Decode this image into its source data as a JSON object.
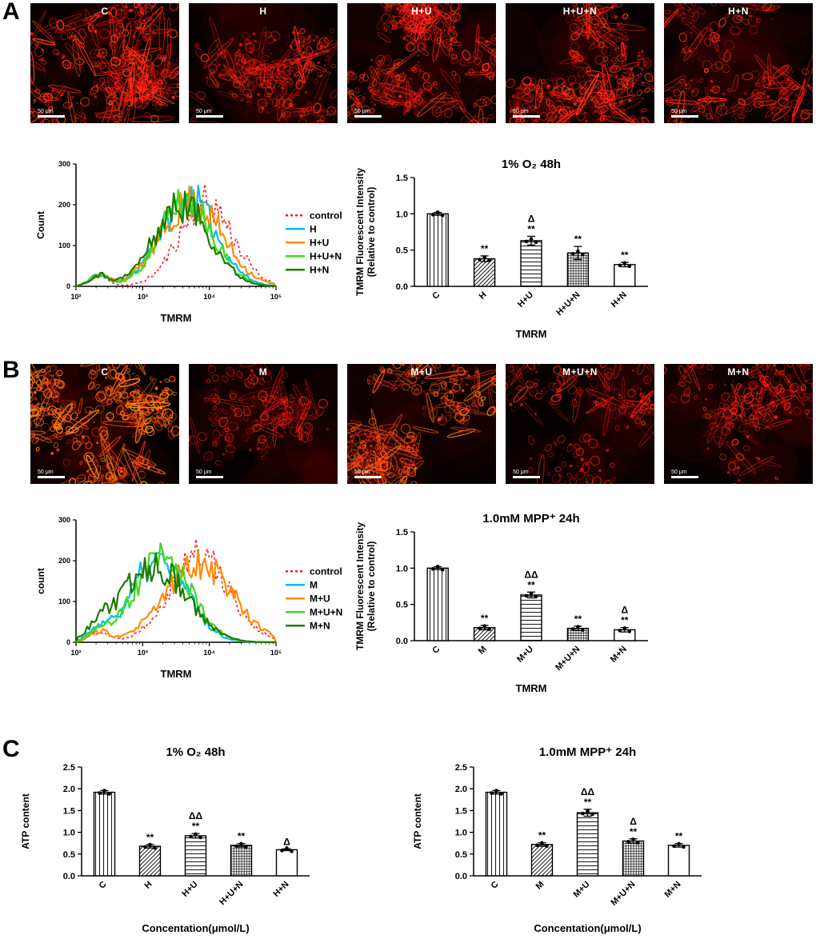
{
  "panels": {
    "A": {
      "label": "A",
      "micrographs": [
        {
          "label": "C",
          "scalebar": "50 μm"
        },
        {
          "label": "H",
          "scalebar": "50 μm"
        },
        {
          "label": "H+U",
          "scalebar": "50 μm"
        },
        {
          "label": "H+U+N",
          "scalebar": "50 μm"
        },
        {
          "label": "H+N",
          "scalebar": "50 μm"
        }
      ]
    },
    "B": {
      "label": "B",
      "micrographs": [
        {
          "label": "C",
          "scalebar": "50 μm"
        },
        {
          "label": "M",
          "scalebar": "50 μm"
        },
        {
          "label": "M+U",
          "scalebar": "50 μm"
        },
        {
          "label": "M+U+N",
          "scalebar": "50 μm"
        },
        {
          "label": "M+N",
          "scalebar": "50 μm"
        }
      ]
    },
    "C": {
      "label": "C"
    }
  },
  "chart_data": [
    {
      "id": "flow-a",
      "type": "line",
      "title": "",
      "xlabel": "TMRM",
      "ylabel": "Count",
      "x_scale": "log",
      "x_tick_labels": [
        "10²",
        "10³",
        "10⁴",
        "10⁵"
      ],
      "y_ticks": [
        0,
        100,
        200,
        300
      ],
      "ylim": [
        0,
        300
      ],
      "legend_position": "right",
      "series": [
        {
          "name": "control",
          "color": "#ff1a1a",
          "dashed": true,
          "peak_log": 3.95,
          "peak_count": 205,
          "sigma": 0.4
        },
        {
          "name": "H",
          "color": "#00bfe8",
          "dashed": false,
          "peak_log": 3.68,
          "peak_count": 215,
          "sigma": 0.42
        },
        {
          "name": "H+U",
          "color": "#ff8c00",
          "dashed": false,
          "peak_log": 3.74,
          "peak_count": 205,
          "sigma": 0.46
        },
        {
          "name": "H+U+N",
          "color": "#3ddb1f",
          "dashed": false,
          "peak_log": 3.66,
          "peak_count": 210,
          "sigma": 0.4
        },
        {
          "name": "H+N",
          "color": "#1e7a00",
          "dashed": false,
          "peak_log": 3.6,
          "peak_count": 198,
          "sigma": 0.42
        }
      ]
    },
    {
      "id": "flow-b",
      "type": "line",
      "title": "",
      "xlabel": "TMRM",
      "ylabel": "count",
      "x_scale": "log",
      "x_tick_labels": [
        "10²",
        "10³",
        "10⁴",
        "10⁵"
      ],
      "y_ticks": [
        0,
        100,
        200,
        300
      ],
      "ylim": [
        0,
        300
      ],
      "legend_position": "right",
      "series": [
        {
          "name": "control",
          "color": "#ff1a1a",
          "dashed": true,
          "peak_log": 3.85,
          "peak_count": 215,
          "sigma": 0.45
        },
        {
          "name": "M",
          "color": "#00bfe8",
          "dashed": false,
          "peak_log": 3.25,
          "peak_count": 200,
          "sigma": 0.42
        },
        {
          "name": "M+U",
          "color": "#ff8c00",
          "dashed": false,
          "peak_log": 3.85,
          "peak_count": 198,
          "sigma": 0.5
        },
        {
          "name": "M+U+N",
          "color": "#3ddb1f",
          "dashed": false,
          "peak_log": 3.3,
          "peak_count": 205,
          "sigma": 0.42
        },
        {
          "name": "M+N",
          "color": "#1e7a00",
          "dashed": false,
          "peak_log": 3.18,
          "peak_count": 188,
          "sigma": 0.48
        }
      ]
    },
    {
      "id": "bar-a",
      "type": "bar",
      "title": "1% O₂  48h",
      "xlabel": "TMRM",
      "ylabel_lines": [
        "TMRM Fluorescent Intensity",
        "(Relative to control)"
      ],
      "ylim": [
        0,
        1.5
      ],
      "y_tick_labels": [
        "0.0",
        "0.5",
        "1.0",
        "1.5"
      ],
      "categories": [
        "C",
        "H",
        "H+U",
        "H+U+N",
        "H+N"
      ],
      "values": [
        1.0,
        0.38,
        0.63,
        0.46,
        0.3
      ],
      "errors": [
        0.02,
        0.04,
        0.06,
        0.09,
        0.03
      ],
      "significance": [
        [],
        [
          "**"
        ],
        [
          "Δ",
          "**"
        ],
        [
          "**"
        ],
        [
          "**"
        ]
      ],
      "bar_patterns": [
        "vlines",
        "diag",
        "hlines",
        "grid",
        "plain"
      ]
    },
    {
      "id": "bar-b",
      "type": "bar",
      "title": "1.0mM MPP⁺  24h",
      "xlabel": "TMRM",
      "ylabel_lines": [
        "TMRM Fluorescent Intensity",
        "(Relative to control)"
      ],
      "ylim": [
        0,
        1.5
      ],
      "y_tick_labels": [
        "0.0",
        "0.5",
        "1.0",
        "1.5"
      ],
      "categories": [
        "C",
        "M",
        "M+U",
        "M+U+N",
        "M+N"
      ],
      "values": [
        1.0,
        0.18,
        0.63,
        0.17,
        0.15
      ],
      "errors": [
        0.02,
        0.03,
        0.04,
        0.03,
        0.03
      ],
      "significance": [
        [],
        [
          "**"
        ],
        [
          "ΔΔ",
          "**"
        ],
        [
          "**"
        ],
        [
          "Δ",
          "**"
        ]
      ],
      "bar_patterns": [
        "vlines",
        "diag",
        "hlines",
        "grid",
        "plain"
      ]
    },
    {
      "id": "bar-c1",
      "type": "bar",
      "title": "1% O₂  48h",
      "xlabel": "Concentation(μmol/L)",
      "ylabel_lines": [
        "ATP content"
      ],
      "ylim": [
        0,
        2.5
      ],
      "y_tick_labels": [
        "0.0",
        "0.5",
        "1.0",
        "1.5",
        "2.0",
        "2.5"
      ],
      "categories": [
        "C",
        "H",
        "H+U",
        "H+U+N",
        "H+N"
      ],
      "values": [
        1.92,
        0.68,
        0.92,
        0.7,
        0.6
      ],
      "errors": [
        0.04,
        0.04,
        0.05,
        0.04,
        0.02
      ],
      "significance": [
        [],
        [
          "**"
        ],
        [
          "ΔΔ",
          "**"
        ],
        [
          "**"
        ],
        [
          "Δ"
        ]
      ],
      "bar_patterns": [
        "vlines",
        "diag",
        "hlines",
        "grid",
        "plain"
      ]
    },
    {
      "id": "bar-c2",
      "type": "bar",
      "title": "1.0mM MPP⁺  24h",
      "xlabel": "Concentation(μmol/L)",
      "ylabel_lines": [
        "ATP content"
      ],
      "ylim": [
        0,
        2.5
      ],
      "y_tick_labels": [
        "0.0",
        "0.5",
        "1.0",
        "1.5",
        "2.0",
        "2.5"
      ],
      "categories": [
        "C",
        "M",
        "M+U",
        "M+U+N",
        "M+N"
      ],
      "values": [
        1.92,
        0.72,
        1.45,
        0.8,
        0.7
      ],
      "errors": [
        0.04,
        0.04,
        0.08,
        0.05,
        0.04
      ],
      "significance": [
        [],
        [
          "**"
        ],
        [
          "ΔΔ",
          "**"
        ],
        [
          "Δ",
          "**"
        ],
        [
          "**"
        ]
      ],
      "bar_patterns": [
        "vlines",
        "diag",
        "hlines",
        "grid",
        "plain"
      ]
    }
  ]
}
